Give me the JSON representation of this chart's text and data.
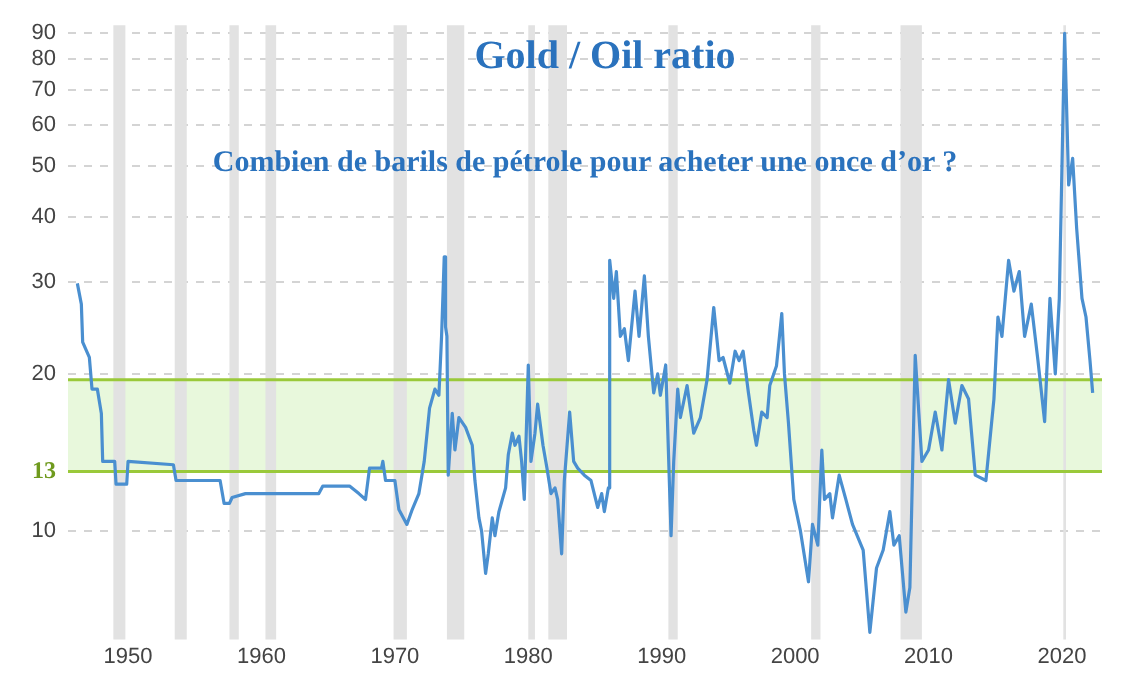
{
  "chart_data": {
    "type": "line",
    "title": "Gold / Oil ratio",
    "subtitle": "Combien de barils de pétrole pour acheter une once d’or ?",
    "log": "y",
    "grid": "y",
    "legend": false,
    "marker": "none",
    "line_style": "solid",
    "xlim": [
      1945.5,
      2023
    ],
    "xticks": [
      1950,
      1960,
      1970,
      1980,
      1990,
      2000,
      2010,
      2020
    ],
    "ylim": [
      6.2,
      93
    ],
    "yticks": [
      10,
      20,
      30,
      40,
      50,
      60,
      70,
      80,
      90
    ],
    "ref_lines": [
      {
        "axis": "y",
        "value": 13,
        "label": "13",
        "color": "#9ac93a"
      },
      {
        "axis": "y",
        "value": 19.5,
        "color": "#9ac93a"
      }
    ],
    "bands": [
      {
        "axis": "y",
        "from": 13,
        "to": 19.5,
        "color": "#e8f8dc"
      },
      {
        "axis": "x",
        "from": 1948.9,
        "to": 1949.8,
        "color": "#e2e2e2"
      },
      {
        "axis": "x",
        "from": 1953.5,
        "to": 1954.4,
        "color": "#e2e2e2"
      },
      {
        "axis": "x",
        "from": 1957.6,
        "to": 1958.3,
        "color": "#e2e2e2"
      },
      {
        "axis": "x",
        "from": 1960.3,
        "to": 1961.1,
        "color": "#e2e2e2"
      },
      {
        "axis": "x",
        "from": 1969.9,
        "to": 1970.9,
        "color": "#e2e2e2"
      },
      {
        "axis": "x",
        "from": 1973.9,
        "to": 1975.2,
        "color": "#e2e2e2"
      },
      {
        "axis": "x",
        "from": 1980.0,
        "to": 1980.5,
        "color": "#e2e2e2"
      },
      {
        "axis": "x",
        "from": 1981.5,
        "to": 1982.9,
        "color": "#e2e2e2"
      },
      {
        "axis": "x",
        "from": 1990.5,
        "to": 1991.2,
        "color": "#e2e2e2"
      },
      {
        "axis": "x",
        "from": 2001.2,
        "to": 2001.9,
        "color": "#e2e2e2"
      },
      {
        "axis": "x",
        "from": 2007.9,
        "to": 2009.5,
        "color": "#e2e2e2"
      },
      {
        "axis": "x",
        "from": 2020.1,
        "to": 2020.3,
        "color": "#e2e2e2"
      }
    ],
    "series": [
      {
        "color": "#4a8fd0",
        "x": [
          1946.2,
          1946.5,
          1946.6,
          1947.1,
          1947.3,
          1947.7,
          1948.0,
          1948.1,
          1949.0,
          1949.1,
          1949.9,
          1950.0,
          1953.4,
          1953.6,
          1956.9,
          1957.2,
          1957.6,
          1957.8,
          1958.8,
          1964.3,
          1964.6,
          1966.6,
          1967.3,
          1967.8,
          1968.1,
          1969.0,
          1969.1,
          1969.3,
          1970.0,
          1970.3,
          1970.9,
          1971.3,
          1971.8,
          1972.2,
          1972.6,
          1973.0,
          1973.3,
          1973.5,
          1973.7,
          1973.8,
          1973.9,
          1974.0,
          1974.3,
          1974.5,
          1974.8,
          1975.3,
          1975.8,
          1976.0,
          1976.3,
          1976.5,
          1976.8,
          1977.0,
          1977.3,
          1977.5,
          1977.8,
          1978.3,
          1978.5,
          1978.8,
          1979.0,
          1979.3,
          1979.5,
          1979.7,
          1980.0,
          1980.2,
          1980.5,
          1980.7,
          1981.1,
          1981.4,
          1981.7,
          1982.0,
          1982.2,
          1982.5,
          1982.7,
          1983.1,
          1983.4,
          1983.7,
          1984.2,
          1984.7,
          1985.2,
          1985.5,
          1985.7,
          1986.0,
          1986.1,
          1986.4,
          1986.6,
          1986.9,
          1987.2,
          1987.5,
          1988.0,
          1988.3,
          1988.7,
          1989.0,
          1989.4,
          1989.7,
          1989.9,
          1990.3,
          1990.7,
          1990.9,
          1991.2,
          1991.4,
          1991.9,
          1992.4,
          1992.9,
          1993.4,
          1993.9,
          1994.3,
          1994.6,
          1995.1,
          1995.5,
          1995.8,
          1996.1,
          1996.5,
          1996.9,
          1997.1,
          1997.5,
          1997.9,
          1998.1,
          1998.6,
          1999.0,
          1999.2,
          1999.5,
          1999.9,
          2000.4,
          2001.0,
          2001.3,
          2001.7,
          2002.0,
          2002.2,
          2002.6,
          2002.8,
          2003.3,
          2003.8,
          2004.3,
          2005.1,
          2005.6,
          2006.1,
          2006.6,
          2007.1,
          2007.4,
          2007.8,
          2008.3,
          2008.6,
          2009.0,
          2009.5,
          2010.0,
          2010.5,
          2011.0,
          2011.5,
          2012.0,
          2012.5,
          2013.0,
          2013.5,
          2014.3,
          2014.9,
          2015.2,
          2015.5,
          2016.0,
          2016.4,
          2016.8,
          2017.2,
          2017.7,
          2018.2,
          2018.7,
          2019.1,
          2019.5,
          2019.8,
          2020.2,
          2020.5,
          2020.8,
          2021.1,
          2021.5,
          2021.8,
          2022.1,
          2022.3
        ],
        "values": [
          29.8,
          27.2,
          23.0,
          21.5,
          18.7,
          18.7,
          16.8,
          13.6,
          13.6,
          12.3,
          12.3,
          13.6,
          13.4,
          12.5,
          12.5,
          11.3,
          11.3,
          11.6,
          11.8,
          11.8,
          12.2,
          12.2,
          11.8,
          11.5,
          13.2,
          13.2,
          13.6,
          12.5,
          12.5,
          11.0,
          10.3,
          11.0,
          11.8,
          13.6,
          17.2,
          18.7,
          18.2,
          23.6,
          33.5,
          24.6,
          23.6,
          12.8,
          16.8,
          14.3,
          16.5,
          15.8,
          14.6,
          12.5,
          10.6,
          10.0,
          8.3,
          9.05,
          10.6,
          9.8,
          10.9,
          12.1,
          14.0,
          15.4,
          14.6,
          15.2,
          13.6,
          11.5,
          20.8,
          13.6,
          15.4,
          17.5,
          14.6,
          13.2,
          11.8,
          12.1,
          11.5,
          9.05,
          12.5,
          16.9,
          13.6,
          13.2,
          12.8,
          12.5,
          11.1,
          11.8,
          10.9,
          12.1,
          33.0,
          27.9,
          31.4,
          23.6,
          24.4,
          21.2,
          28.8,
          23.6,
          30.8,
          23.6,
          18.4,
          20.0,
          18.2,
          20.8,
          9.8,
          13.6,
          18.7,
          16.5,
          19.0,
          15.4,
          16.5,
          19.5,
          26.8,
          21.2,
          21.5,
          19.2,
          22.1,
          21.2,
          22.1,
          18.4,
          15.6,
          14.6,
          16.9,
          16.5,
          19.0,
          20.7,
          26.1,
          20.0,
          16.1,
          11.5,
          10.0,
          8.0,
          10.3,
          9.4,
          14.3,
          11.5,
          11.8,
          10.6,
          12.8,
          11.5,
          10.3,
          9.2,
          6.4,
          8.5,
          9.2,
          10.9,
          9.4,
          9.8,
          7.0,
          7.8,
          21.7,
          13.6,
          14.3,
          16.9,
          14.3,
          19.5,
          16.1,
          19.0,
          17.9,
          12.8,
          12.5,
          17.9,
          25.7,
          23.6,
          33.0,
          28.8,
          31.4,
          23.6,
          27.2,
          21.2,
          16.2,
          27.9,
          20.0,
          27.9,
          89.7,
          46.0,
          51.7,
          38.0,
          27.9,
          25.7,
          21.2,
          18.4
        ]
      }
    ]
  }
}
